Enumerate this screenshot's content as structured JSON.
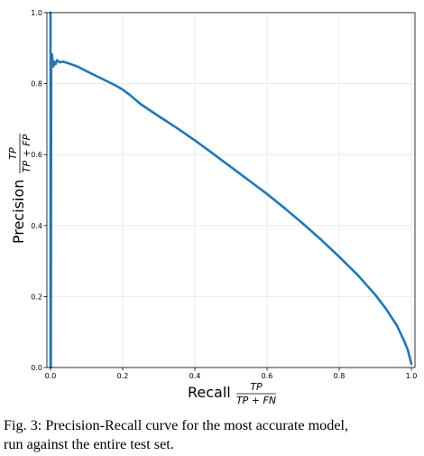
{
  "chart_data": {
    "type": "line",
    "xlabel_word": "Recall",
    "xlabel_frac_num": "TP",
    "xlabel_frac_den": "TP + FN",
    "ylabel_word": "Precision",
    "ylabel_frac_num": "TP",
    "ylabel_frac_den": "TP + FP",
    "xlim": [
      -0.01,
      1.01
    ],
    "ylim": [
      0.0,
      1.0
    ],
    "xticks": [
      "0.0",
      "0.2",
      "0.4",
      "0.6",
      "0.8",
      "1.0"
    ],
    "yticks": [
      "0.0",
      "0.2",
      "0.4",
      "0.6",
      "0.8",
      "1.0"
    ],
    "grid": true,
    "color": "#1f77b4",
    "series": [
      {
        "x": [
          0.0,
          0.0,
          0.001,
          0.002,
          0.004,
          0.006,
          0.008,
          0.01,
          0.014,
          0.018,
          0.025,
          0.035,
          0.05,
          0.075,
          0.1,
          0.13,
          0.16,
          0.18,
          0.2,
          0.22,
          0.25,
          0.3,
          0.35,
          0.4,
          0.45,
          0.5,
          0.55,
          0.6,
          0.65,
          0.7,
          0.75,
          0.8,
          0.85,
          0.9,
          0.93,
          0.96,
          0.98,
          0.99,
          0.995,
          1.0
        ],
        "y": [
          1.0,
          0.0,
          0.0,
          0.87,
          0.883,
          0.86,
          0.848,
          0.862,
          0.855,
          0.866,
          0.86,
          0.862,
          0.857,
          0.848,
          0.835,
          0.82,
          0.805,
          0.795,
          0.783,
          0.768,
          0.742,
          0.708,
          0.675,
          0.64,
          0.603,
          0.565,
          0.527,
          0.489,
          0.448,
          0.405,
          0.36,
          0.312,
          0.262,
          0.205,
          0.165,
          0.118,
          0.075,
          0.05,
          0.03,
          0.01
        ]
      }
    ]
  },
  "caption": {
    "line1": "Fig. 3: Precision-Recall curve for the most accurate model,",
    "line2": "run against the entire test set."
  }
}
